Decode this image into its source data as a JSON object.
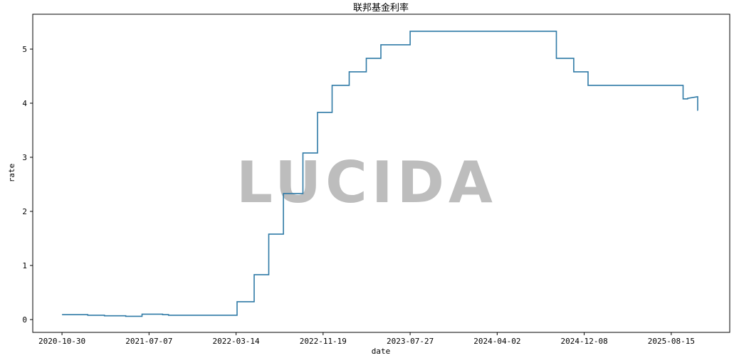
{
  "chart_data": {
    "type": "line",
    "step": "post",
    "title": "联邦基金利率",
    "xlabel": "date",
    "ylabel": "rate",
    "xlim": [
      "2020-08-07",
      "2026-01-30"
    ],
    "ylim": [
      -0.237,
      5.645
    ],
    "x_ticks": [
      "2020-10-30",
      "2021-07-07",
      "2022-03-14",
      "2022-11-19",
      "2023-07-27",
      "2024-04-02",
      "2024-12-08",
      "2025-08-15"
    ],
    "y_ticks": [
      0,
      1,
      2,
      3,
      4,
      5
    ],
    "grid": false,
    "line_color": "#2f7aa6",
    "series": [
      {
        "points": [
          [
            "2020-10-30",
            0.09
          ],
          [
            "2021-01-05",
            0.09
          ],
          [
            "2021-01-12",
            0.08
          ],
          [
            "2021-03-01",
            0.07
          ],
          [
            "2021-05-01",
            0.06
          ],
          [
            "2021-06-17",
            0.1
          ],
          [
            "2021-08-15",
            0.09
          ],
          [
            "2021-09-01",
            0.08
          ],
          [
            "2022-03-17",
            0.33
          ],
          [
            "2022-05-05",
            0.83
          ],
          [
            "2022-06-16",
            1.58
          ],
          [
            "2022-07-28",
            2.33
          ],
          [
            "2022-09-22",
            3.08
          ],
          [
            "2022-11-03",
            3.83
          ],
          [
            "2022-12-15",
            4.33
          ],
          [
            "2023-02-02",
            4.58
          ],
          [
            "2023-03-23",
            4.83
          ],
          [
            "2023-05-04",
            5.08
          ],
          [
            "2023-07-27",
            5.33
          ],
          [
            "2024-09-19",
            4.83
          ],
          [
            "2024-11-08",
            4.58
          ],
          [
            "2024-12-19",
            4.33
          ],
          [
            "2025-09-18",
            4.08
          ],
          [
            "2025-10-01",
            4.09
          ],
          [
            "2025-10-29",
            4.12
          ],
          [
            "2025-10-30",
            3.87
          ],
          [
            "2025-10-31",
            3.87
          ]
        ]
      }
    ]
  },
  "watermark": "LUCIDA"
}
